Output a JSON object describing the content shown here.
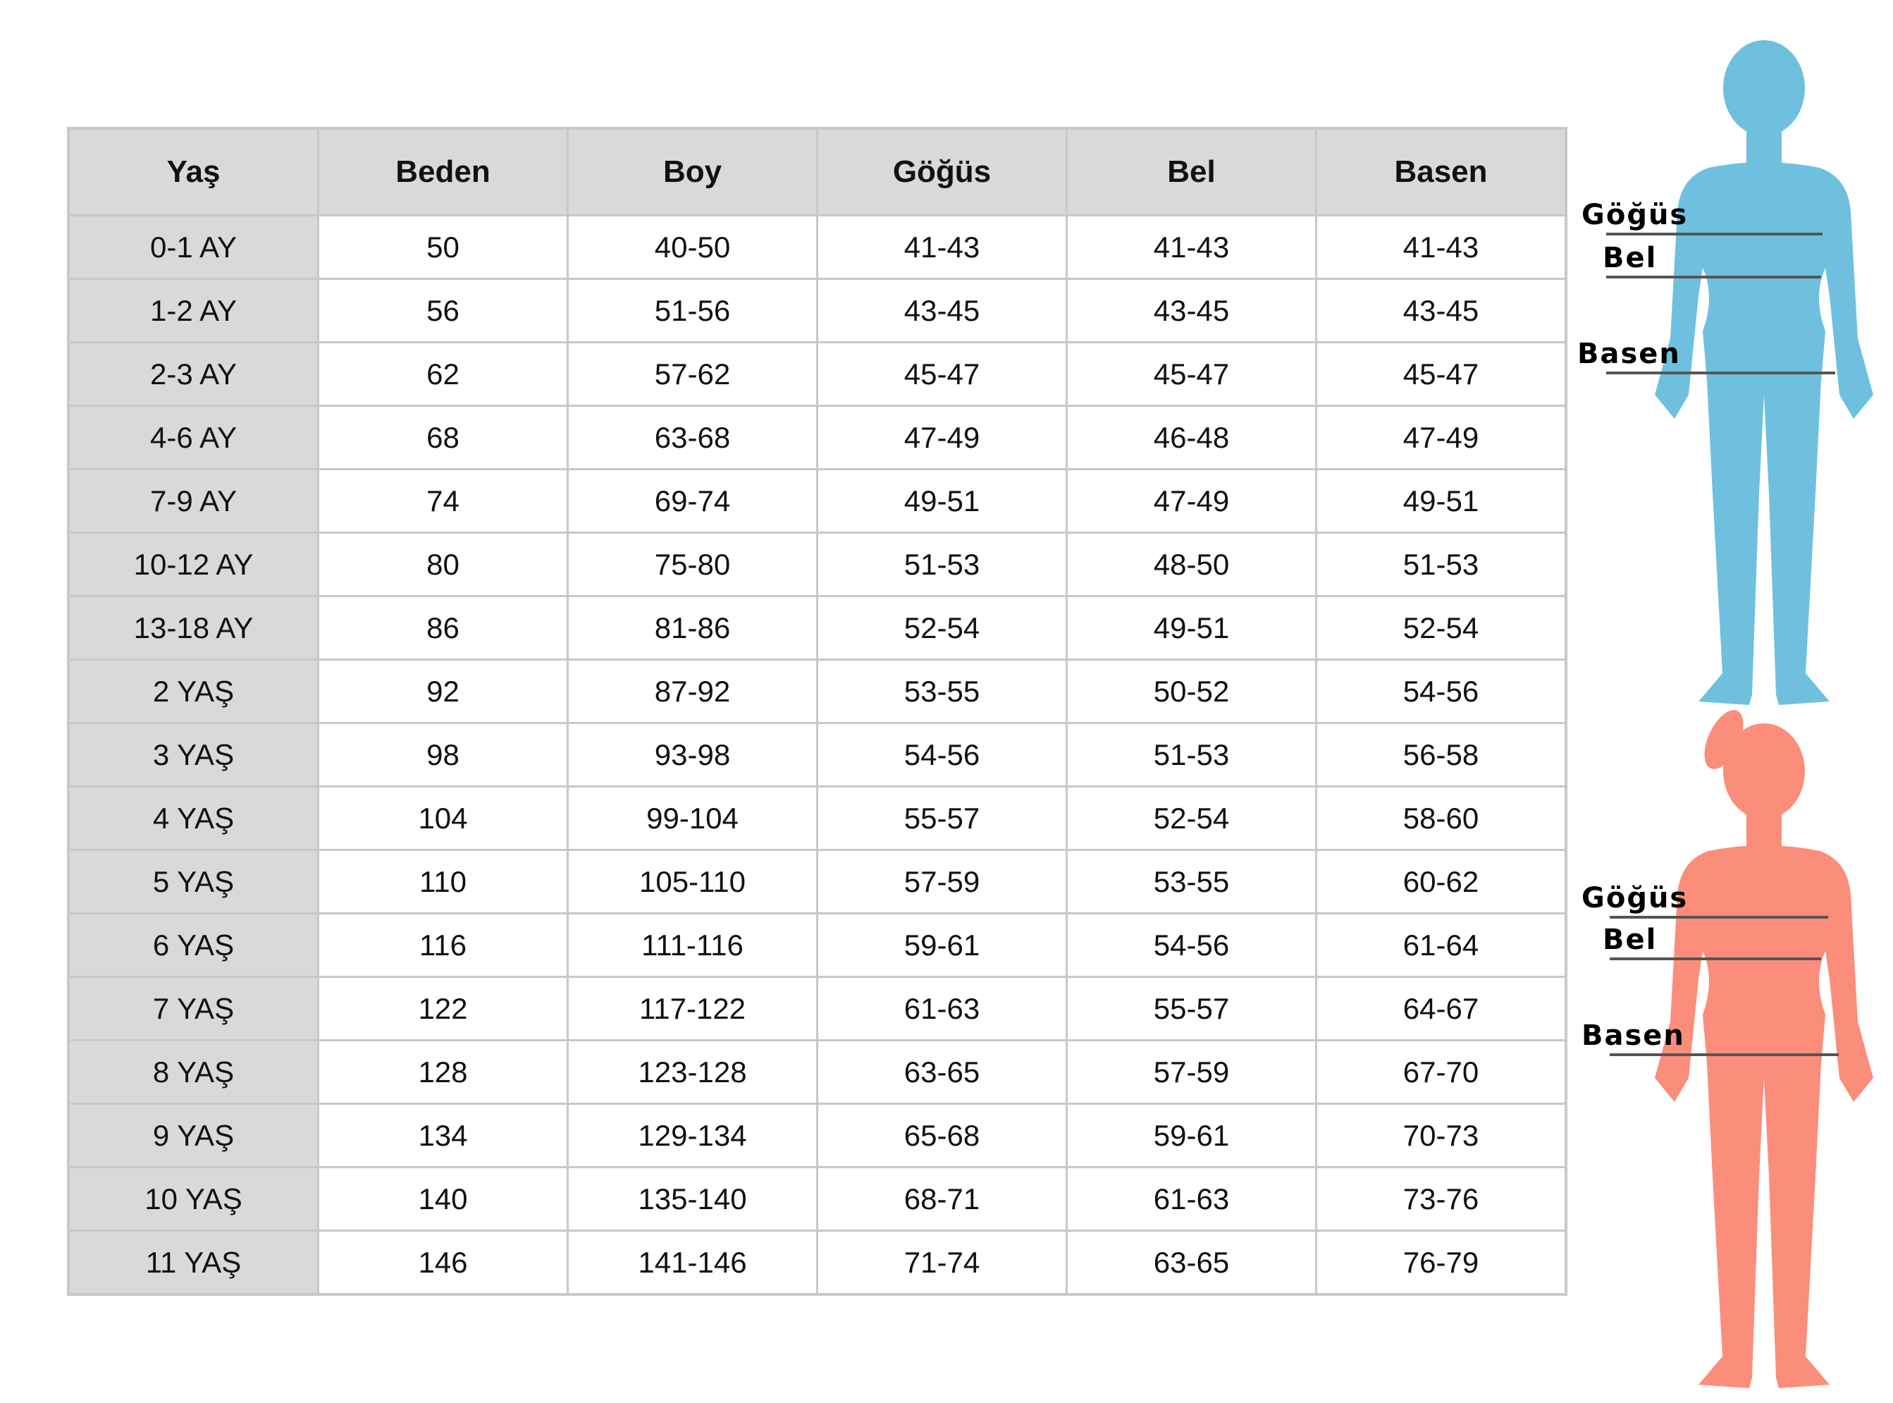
{
  "headers": [
    "Yaş",
    "Beden",
    "Boy",
    "Göğüs",
    "Bel",
    "Basen"
  ],
  "rows": [
    [
      "0-1 AY",
      "50",
      "40-50",
      "41-43",
      "41-43",
      "41-43"
    ],
    [
      "1-2 AY",
      "56",
      "51-56",
      "43-45",
      "43-45",
      "43-45"
    ],
    [
      "2-3 AY",
      "62",
      "57-62",
      "45-47",
      "45-47",
      "45-47"
    ],
    [
      "4-6 AY",
      "68",
      "63-68",
      "47-49",
      "46-48",
      "47-49"
    ],
    [
      "7-9 AY",
      "74",
      "69-74",
      "49-51",
      "47-49",
      "49-51"
    ],
    [
      "10-12 AY",
      "80",
      "75-80",
      "51-53",
      "48-50",
      "51-53"
    ],
    [
      "13-18 AY",
      "86",
      "81-86",
      "52-54",
      "49-51",
      "52-54"
    ],
    [
      "2 YAŞ",
      "92",
      "87-92",
      "53-55",
      "50-52",
      "54-56"
    ],
    [
      "3 YAŞ",
      "98",
      "93-98",
      "54-56",
      "51-53",
      "56-58"
    ],
    [
      "4 YAŞ",
      "104",
      "99-104",
      "55-57",
      "52-54",
      "58-60"
    ],
    [
      "5 YAŞ",
      "110",
      "105-110",
      "57-59",
      "53-55",
      "60-62"
    ],
    [
      "6 YAŞ",
      "116",
      "111-116",
      "59-61",
      "54-56",
      "61-64"
    ],
    [
      "7 YAŞ",
      "122",
      "117-122",
      "61-63",
      "55-57",
      "64-67"
    ],
    [
      "8 YAŞ",
      "128",
      "123-128",
      "63-65",
      "57-59",
      "67-70"
    ],
    [
      "9 YAŞ",
      "134",
      "129-134",
      "65-68",
      "59-61",
      "70-73"
    ],
    [
      "10 YAŞ",
      "140",
      "135-140",
      "68-71",
      "61-63",
      "73-76"
    ],
    [
      "11 YAŞ",
      "146",
      "141-146",
      "71-74",
      "63-65",
      "76-79"
    ]
  ],
  "figures": {
    "boy": {
      "color": "#6fc0de",
      "labels": {
        "chest": "Göğüs",
        "waist": "Bel",
        "hip": "Basen"
      }
    },
    "girl": {
      "color": "#fb8d7b",
      "labels": {
        "chest": "Göğüs",
        "waist": "Bel",
        "hip": "Basen"
      }
    }
  }
}
